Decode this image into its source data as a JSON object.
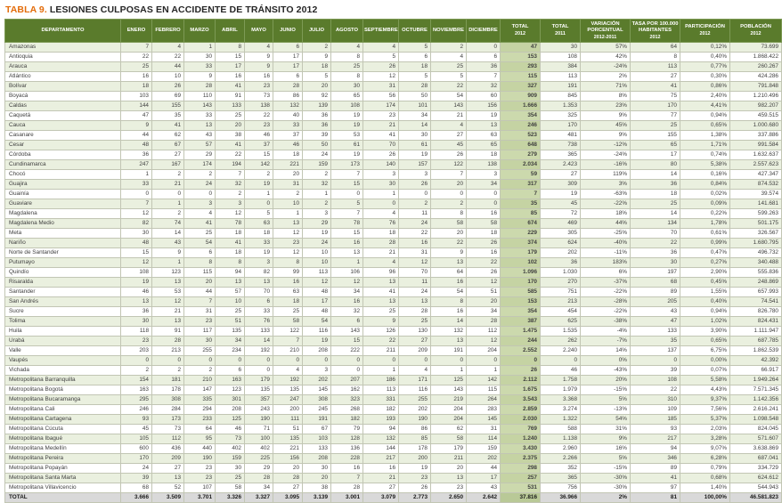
{
  "title": {
    "prefix": "TABLA 9.",
    "text": "LESIONES CULPOSAS EN ACCIDENTE DE TRÁNSITO 2012"
  },
  "colors": {
    "accent": "#e36c0a",
    "header_bg": "#5a7b2c",
    "row_tint": "#eaf0df",
    "total_col": "#ccd9ad",
    "total_row": "#d9d9d9"
  },
  "table": {
    "columns": [
      {
        "label": "DEPARTAMENTO",
        "sub": ""
      },
      {
        "label": "ENERO",
        "sub": ""
      },
      {
        "label": "FEBRERO",
        "sub": ""
      },
      {
        "label": "MARZO",
        "sub": ""
      },
      {
        "label": "ABRIL",
        "sub": ""
      },
      {
        "label": "MAYO",
        "sub": ""
      },
      {
        "label": "JUNIO",
        "sub": ""
      },
      {
        "label": "JULIO",
        "sub": ""
      },
      {
        "label": "AGOSTO",
        "sub": ""
      },
      {
        "label": "SEPTIEMBRE",
        "sub": ""
      },
      {
        "label": "OCTUBRE",
        "sub": ""
      },
      {
        "label": "NOVIEMBRE",
        "sub": ""
      },
      {
        "label": "DICIEMBRE",
        "sub": ""
      },
      {
        "label": "TOTAL",
        "sub": "2012"
      },
      {
        "label": "TOTAL",
        "sub": "2011"
      },
      {
        "label": "VARIACIÓN PORCENTUAL",
        "sub": "2012-2011"
      },
      {
        "label": "TASA POR 100.000 HABITANTES",
        "sub": "2012"
      },
      {
        "label": "PARTICIPACIÓN",
        "sub": "2012"
      },
      {
        "label": "POBLACIÓN",
        "sub": "2012"
      }
    ],
    "rows": [
      [
        "Amazonas",
        "7",
        "4",
        "1",
        "8",
        "4",
        "6",
        "2",
        "4",
        "4",
        "5",
        "2",
        "0",
        "47",
        "30",
        "57%",
        "64",
        "0,12%",
        "73.699"
      ],
      [
        "Antioquia",
        "22",
        "22",
        "30",
        "15",
        "9",
        "17",
        "9",
        "8",
        "5",
        "6",
        "4",
        "6",
        "153",
        "108",
        "42%",
        "8",
        "0,40%",
        "1.868.422"
      ],
      [
        "Arauca",
        "25",
        "44",
        "33",
        "17",
        "9",
        "17",
        "18",
        "25",
        "26",
        "18",
        "25",
        "36",
        "293",
        "384",
        "-24%",
        "113",
        "0,77%",
        "260.267"
      ],
      [
        "Atlántico",
        "16",
        "10",
        "9",
        "16",
        "16",
        "6",
        "5",
        "8",
        "12",
        "5",
        "5",
        "7",
        "115",
        "113",
        "2%",
        "27",
        "0,30%",
        "424.286"
      ],
      [
        "Bolívar",
        "18",
        "26",
        "28",
        "41",
        "23",
        "28",
        "20",
        "30",
        "31",
        "28",
        "22",
        "32",
        "327",
        "191",
        "71%",
        "41",
        "0,86%",
        "791.848"
      ],
      [
        "Boyacá",
        "103",
        "69",
        "110",
        "91",
        "73",
        "86",
        "92",
        "65",
        "56",
        "50",
        "54",
        "60",
        "909",
        "845",
        "8%",
        "75",
        "2,40%",
        "1.210.496"
      ],
      [
        "Caldas",
        "144",
        "155",
        "143",
        "133",
        "138",
        "132",
        "139",
        "108",
        "174",
        "101",
        "143",
        "156",
        "1.666",
        "1.353",
        "23%",
        "170",
        "4,41%",
        "982.207"
      ],
      [
        "Caquetá",
        "47",
        "35",
        "33",
        "25",
        "22",
        "40",
        "36",
        "19",
        "23",
        "34",
        "21",
        "19",
        "354",
        "325",
        "9%",
        "77",
        "0,94%",
        "459.515"
      ],
      [
        "Cauca",
        "9",
        "41",
        "13",
        "20",
        "23",
        "33",
        "36",
        "19",
        "21",
        "14",
        "4",
        "13",
        "246",
        "170",
        "45%",
        "25",
        "0,65%",
        "1.000.680"
      ],
      [
        "Casanare",
        "44",
        "62",
        "43",
        "38",
        "46",
        "37",
        "39",
        "53",
        "41",
        "30",
        "27",
        "63",
        "523",
        "481",
        "9%",
        "155",
        "1,38%",
        "337.886"
      ],
      [
        "Cesar",
        "48",
        "67",
        "57",
        "41",
        "37",
        "46",
        "50",
        "61",
        "70",
        "61",
        "45",
        "65",
        "648",
        "738",
        "-12%",
        "65",
        "1,71%",
        "991.584"
      ],
      [
        "Córdoba",
        "36",
        "27",
        "29",
        "22",
        "15",
        "18",
        "24",
        "19",
        "26",
        "19",
        "26",
        "18",
        "279",
        "365",
        "-24%",
        "17",
        "0,74%",
        "1.632.637"
      ],
      [
        "Cundinamarca",
        "247",
        "167",
        "174",
        "194",
        "142",
        "221",
        "159",
        "173",
        "140",
        "157",
        "122",
        "138",
        "2.034",
        "2.423",
        "-16%",
        "80",
        "5,38%",
        "2.557.623"
      ],
      [
        "Chocó",
        "1",
        "2",
        "2",
        "7",
        "2",
        "20",
        "2",
        "7",
        "3",
        "3",
        "7",
        "3",
        "59",
        "27",
        "119%",
        "14",
        "0,16%",
        "427.347"
      ],
      [
        "Guajira",
        "33",
        "21",
        "24",
        "32",
        "19",
        "31",
        "32",
        "15",
        "30",
        "26",
        "20",
        "34",
        "317",
        "309",
        "3%",
        "36",
        "0,84%",
        "874.532"
      ],
      [
        "Guainía",
        "0",
        "0",
        "0",
        "2",
        "1",
        "2",
        "1",
        "0",
        "1",
        "0",
        "0",
        "0",
        "7",
        "19",
        "-63%",
        "18",
        "0,02%",
        "39.574"
      ],
      [
        "Guaviare",
        "7",
        "1",
        "3",
        "3",
        "0",
        "10",
        "2",
        "5",
        "0",
        "2",
        "2",
        "0",
        "35",
        "45",
        "-22%",
        "25",
        "0,09%",
        "141.681"
      ],
      [
        "Magdalena",
        "12",
        "2",
        "4",
        "12",
        "5",
        "1",
        "3",
        "7",
        "4",
        "11",
        "8",
        "16",
        "85",
        "72",
        "18%",
        "14",
        "0,22%",
        "599.263"
      ],
      [
        "Magdalena Medio",
        "82",
        "74",
        "41",
        "78",
        "63",
        "13",
        "29",
        "78",
        "76",
        "24",
        "58",
        "58",
        "674",
        "469",
        "44%",
        "134",
        "1,78%",
        "501.175"
      ],
      [
        "Meta",
        "30",
        "14",
        "25",
        "18",
        "18",
        "12",
        "19",
        "15",
        "18",
        "22",
        "20",
        "18",
        "229",
        "305",
        "-25%",
        "70",
        "0,61%",
        "326.567"
      ],
      [
        "Nariño",
        "48",
        "43",
        "54",
        "41",
        "33",
        "23",
        "24",
        "16",
        "28",
        "16",
        "22",
        "26",
        "374",
        "624",
        "-40%",
        "22",
        "0,99%",
        "1.680.795"
      ],
      [
        "Norte de Santander",
        "15",
        "9",
        "6",
        "18",
        "19",
        "12",
        "10",
        "13",
        "21",
        "31",
        "9",
        "16",
        "179",
        "202",
        "-11%",
        "36",
        "0,47%",
        "496.732"
      ],
      [
        "Putumayo",
        "12",
        "1",
        "8",
        "8",
        "3",
        "8",
        "10",
        "1",
        "4",
        "12",
        "13",
        "22",
        "102",
        "36",
        "183%",
        "30",
        "0,27%",
        "340.488"
      ],
      [
        "Quindío",
        "108",
        "123",
        "115",
        "94",
        "82",
        "99",
        "113",
        "106",
        "96",
        "70",
        "64",
        "26",
        "1.096",
        "1.030",
        "6%",
        "197",
        "2,90%",
        "555.836"
      ],
      [
        "Risaralda",
        "19",
        "13",
        "20",
        "13",
        "13",
        "16",
        "12",
        "12",
        "13",
        "11",
        "16",
        "12",
        "170",
        "270",
        "-37%",
        "68",
        "0,45%",
        "248.869"
      ],
      [
        "Santander",
        "46",
        "53",
        "44",
        "57",
        "70",
        "63",
        "48",
        "34",
        "41",
        "24",
        "54",
        "51",
        "585",
        "751",
        "-22%",
        "89",
        "1,55%",
        "657.993"
      ],
      [
        "San Andrés",
        "13",
        "12",
        "7",
        "10",
        "6",
        "18",
        "17",
        "16",
        "13",
        "13",
        "8",
        "20",
        "153",
        "213",
        "-28%",
        "205",
        "0,40%",
        "74.541"
      ],
      [
        "Sucre",
        "36",
        "21",
        "31",
        "25",
        "33",
        "25",
        "48",
        "32",
        "25",
        "28",
        "16",
        "34",
        "354",
        "454",
        "-22%",
        "43",
        "0,94%",
        "826.780"
      ],
      [
        "Tolima",
        "30",
        "13",
        "23",
        "51",
        "76",
        "58",
        "54",
        "6",
        "9",
        "25",
        "14",
        "28",
        "387",
        "625",
        "-38%",
        "47",
        "1,02%",
        "824.431"
      ],
      [
        "Huila",
        "118",
        "91",
        "117",
        "135",
        "133",
        "122",
        "116",
        "143",
        "126",
        "130",
        "132",
        "112",
        "1.475",
        "1.535",
        "-4%",
        "133",
        "3,90%",
        "1.111.947"
      ],
      [
        "Urabá",
        "23",
        "28",
        "30",
        "34",
        "14",
        "7",
        "19",
        "15",
        "22",
        "27",
        "13",
        "12",
        "244",
        "262",
        "-7%",
        "35",
        "0,65%",
        "687.785"
      ],
      [
        "Valle",
        "203",
        "213",
        "255",
        "234",
        "192",
        "210",
        "208",
        "222",
        "211",
        "209",
        "191",
        "204",
        "2.552",
        "2.240",
        "14%",
        "137",
        "6,75%",
        "1.862.539"
      ],
      [
        "Vaupés",
        "0",
        "0",
        "0",
        "0",
        "0",
        "0",
        "0",
        "0",
        "0",
        "0",
        "0",
        "0",
        "0",
        "0",
        "0%",
        "0",
        "0,00%",
        "42.392"
      ],
      [
        "Vichada",
        "2",
        "2",
        "2",
        "6",
        "0",
        "4",
        "3",
        "0",
        "1",
        "4",
        "1",
        "1",
        "26",
        "46",
        "-43%",
        "39",
        "0,07%",
        "66.917"
      ],
      [
        "Metropolitana Barranquilla",
        "154",
        "181",
        "210",
        "163",
        "179",
        "192",
        "202",
        "207",
        "186",
        "171",
        "125",
        "142",
        "2.112",
        "1.758",
        "20%",
        "108",
        "5,58%",
        "1.949.264"
      ],
      [
        "Metropolitana Bogotá",
        "163",
        "178",
        "147",
        "123",
        "135",
        "135",
        "145",
        "162",
        "113",
        "116",
        "143",
        "115",
        "1.675",
        "1.979",
        "-15%",
        "22",
        "4,43%",
        "7.571.345"
      ],
      [
        "Metropolitana Bucaramanga",
        "295",
        "308",
        "335",
        "301",
        "357",
        "247",
        "308",
        "323",
        "331",
        "255",
        "219",
        "264",
        "3.543",
        "3.368",
        "5%",
        "310",
        "9,37%",
        "1.142.356"
      ],
      [
        "Metropolitana Cali",
        "246",
        "284",
        "294",
        "208",
        "243",
        "200",
        "245",
        "268",
        "182",
        "202",
        "204",
        "283",
        "2.859",
        "3.274",
        "-13%",
        "109",
        "7,56%",
        "2.616.241"
      ],
      [
        "Metropolitana Cartagena",
        "93",
        "173",
        "233",
        "125",
        "190",
        "111",
        "191",
        "182",
        "193",
        "190",
        "204",
        "145",
        "2.030",
        "1.322",
        "54%",
        "185",
        "5,37%",
        "1.098.548"
      ],
      [
        "Metropolitana Cúcuta",
        "45",
        "73",
        "64",
        "46",
        "71",
        "51",
        "67",
        "79",
        "94",
        "86",
        "62",
        "31",
        "769",
        "588",
        "31%",
        "93",
        "2,03%",
        "824.045"
      ],
      [
        "Metropolitana Ibagué",
        "105",
        "112",
        "95",
        "73",
        "100",
        "135",
        "103",
        "128",
        "132",
        "85",
        "58",
        "114",
        "1.240",
        "1.138",
        "9%",
        "217",
        "3,28%",
        "571.607"
      ],
      [
        "Metropolitana Medellín",
        "600",
        "436",
        "440",
        "402",
        "402",
        "221",
        "133",
        "136",
        "144",
        "178",
        "179",
        "159",
        "3.430",
        "2.960",
        "16%",
        "94",
        "9,07%",
        "3.638.869"
      ],
      [
        "Metropolitana Pereira",
        "170",
        "209",
        "190",
        "159",
        "225",
        "156",
        "208",
        "228",
        "217",
        "200",
        "211",
        "202",
        "2.375",
        "2.266",
        "5%",
        "346",
        "6,28%",
        "687.041"
      ],
      [
        "Metropolitana Popayán",
        "24",
        "27",
        "23",
        "30",
        "29",
        "20",
        "30",
        "16",
        "16",
        "19",
        "20",
        "44",
        "298",
        "352",
        "-15%",
        "89",
        "0,79%",
        "334.729"
      ],
      [
        "Metropolitana Santa Marta",
        "39",
        "13",
        "23",
        "25",
        "28",
        "28",
        "20",
        "7",
        "21",
        "23",
        "13",
        "17",
        "257",
        "365",
        "-30%",
        "41",
        "0,68%",
        "624.612"
      ],
      [
        "Metropolitana Villavicencio",
        "68",
        "52",
        "107",
        "58",
        "34",
        "27",
        "38",
        "28",
        "27",
        "26",
        "23",
        "43",
        "531",
        "756",
        "-30%",
        "97",
        "1,40%",
        "544.943"
      ]
    ],
    "total_row": [
      "TOTAL",
      "3.666",
      "3.509",
      "3.701",
      "3.326",
      "3.327",
      "3.095",
      "3.139",
      "3.001",
      "3.079",
      "2.773",
      "2.650",
      "2.642",
      "37.816",
      "36.966",
      "2%",
      "81",
      "100,00%",
      "46.581.823"
    ]
  }
}
